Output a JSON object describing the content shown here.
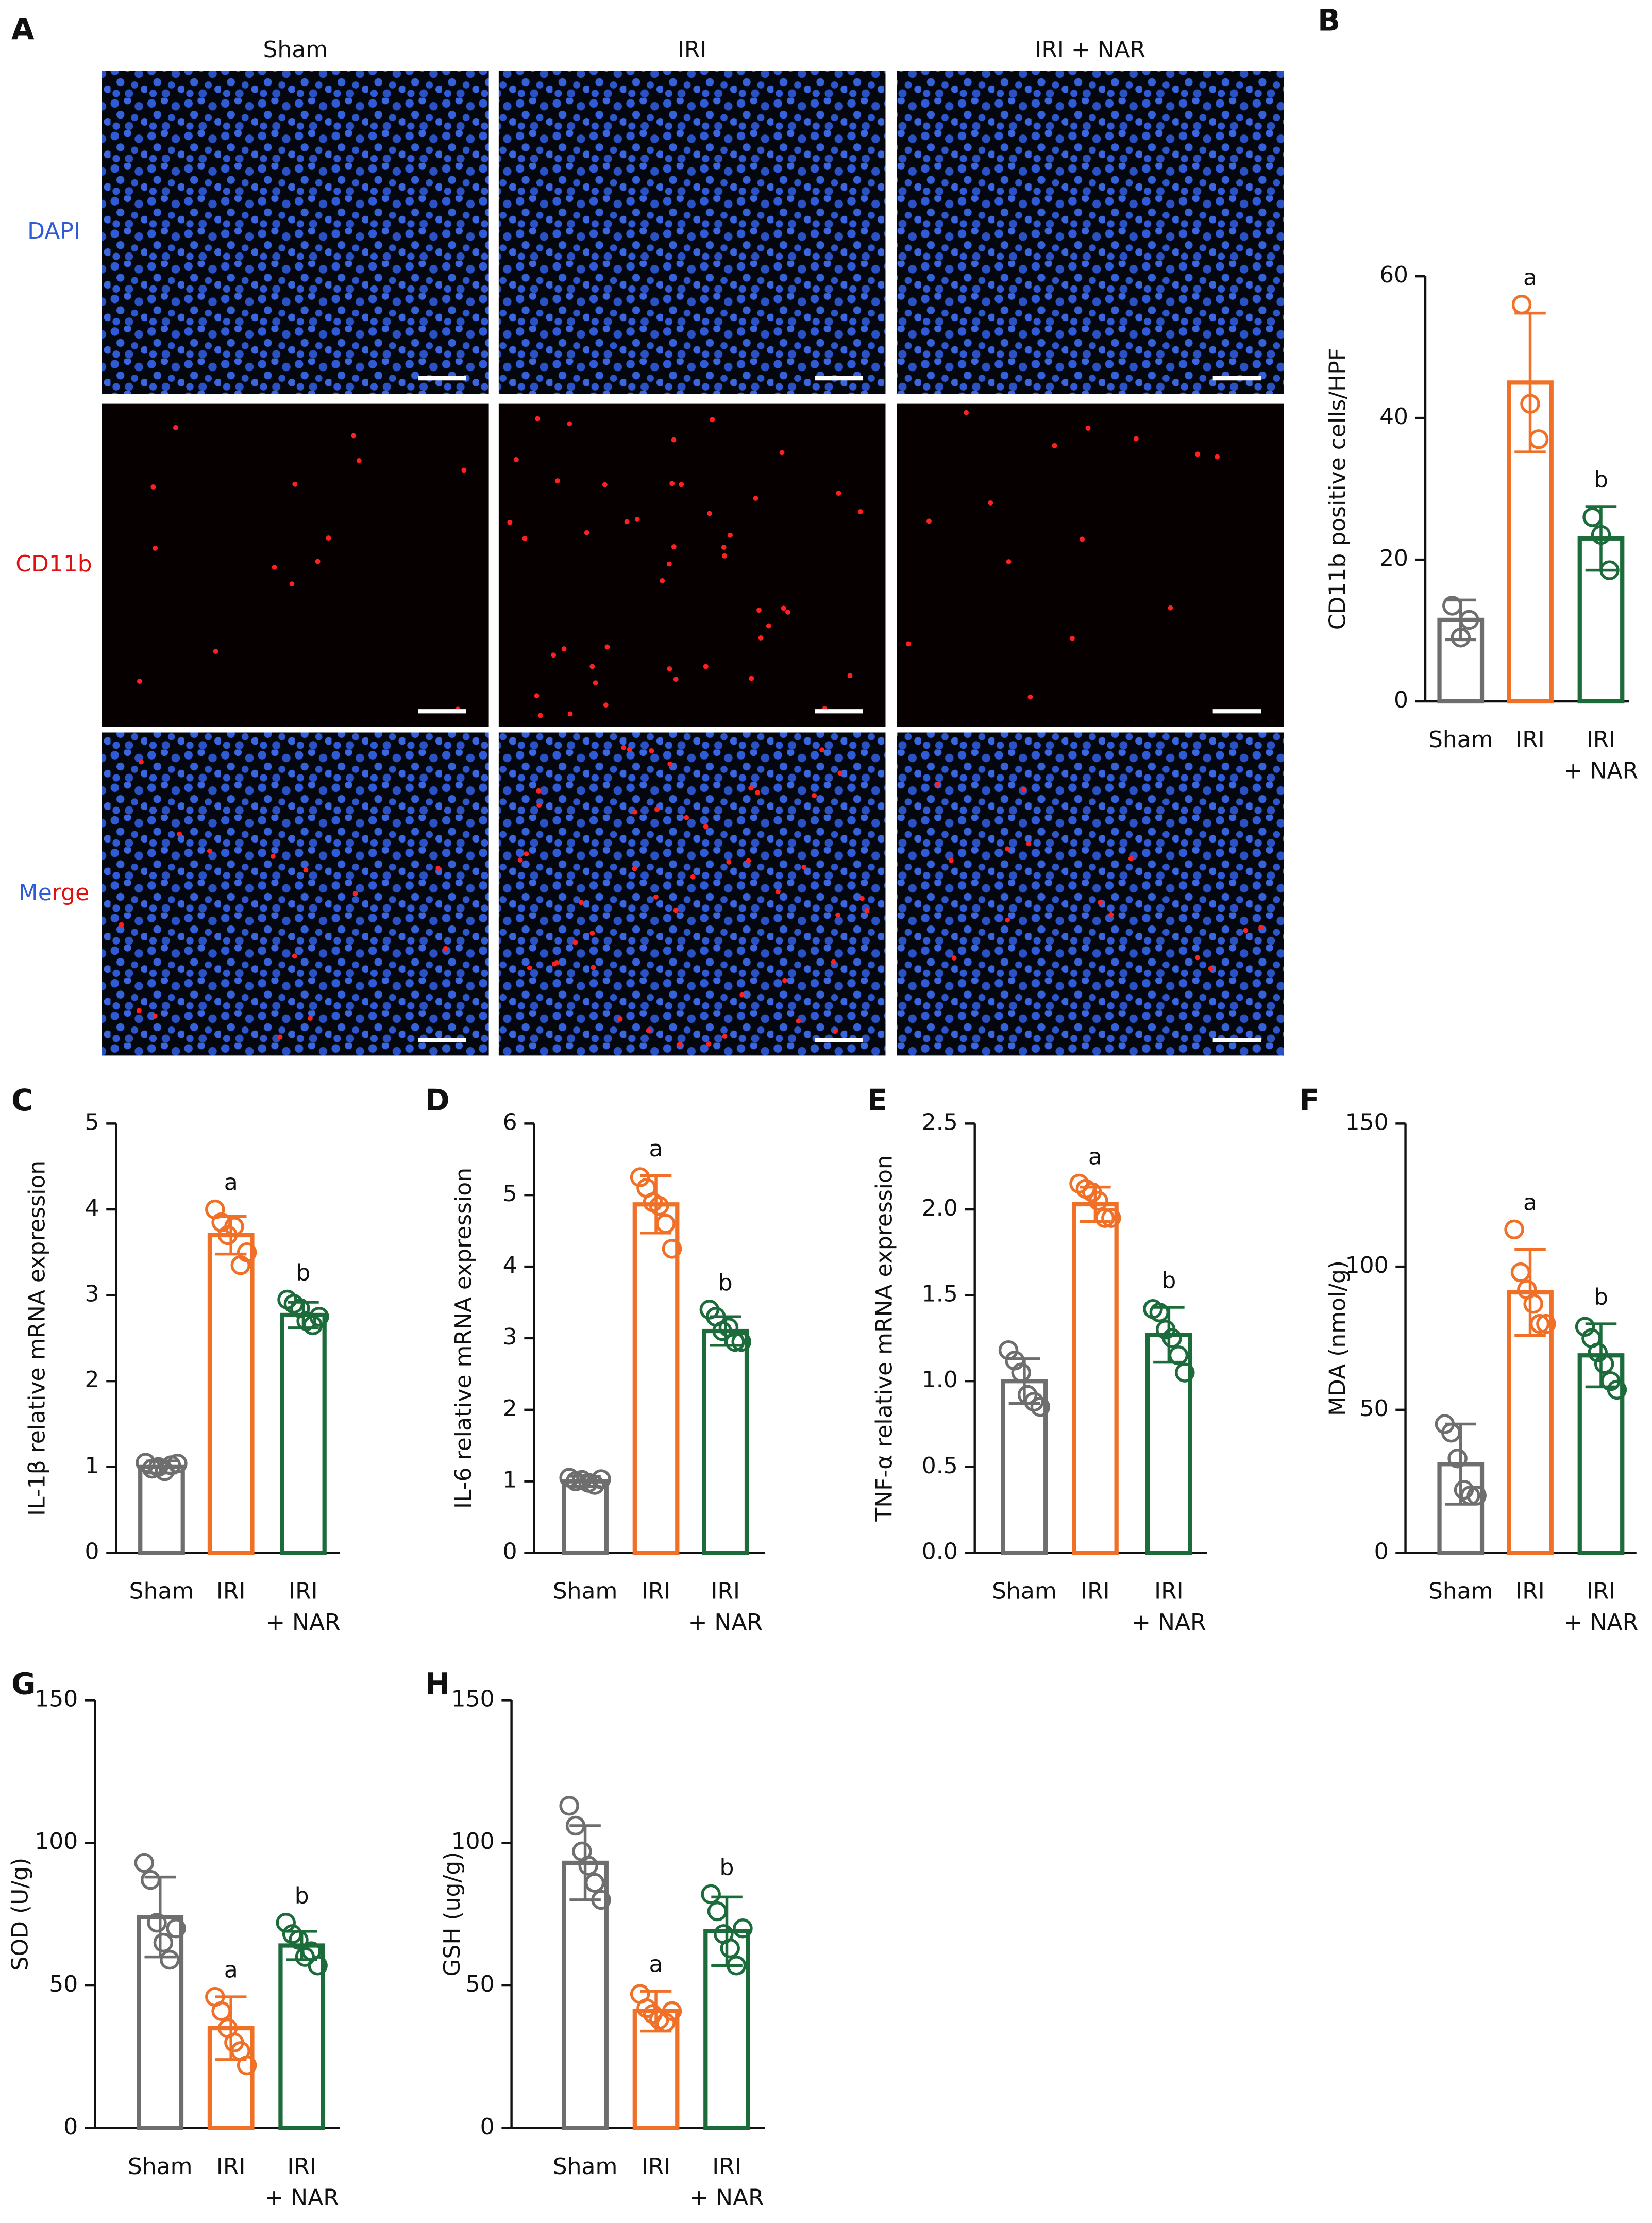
{
  "panel_a": {
    "label": "A",
    "columns": [
      "Sham",
      "IRI",
      "IRI + NAR"
    ],
    "rows": [
      "DAPI",
      "CD11b",
      "Merge"
    ]
  },
  "chart_data": [
    {
      "type": "bar",
      "label": "B",
      "ylabel": "CD11b positive cells/HPF",
      "categories": [
        "Sham",
        "IRI",
        "IRI + NAR"
      ],
      "colors": [
        "#6e6e6e",
        "#f07027",
        "#1c6b3a"
      ],
      "values": [
        11.5,
        45,
        23
      ],
      "errors": [
        2.8,
        9.8,
        4.5
      ],
      "points": [
        [
          13.5,
          9,
          11.5
        ],
        [
          56,
          42,
          37
        ],
        [
          26,
          23.5,
          18.5
        ]
      ],
      "annotations": [
        null,
        "a",
        "b"
      ],
      "ylim": [
        0,
        60
      ],
      "yticks": [
        0,
        20,
        40,
        60
      ]
    },
    {
      "type": "bar",
      "label": "C",
      "ylabel": "IL-1β relative mRNA expression",
      "categories": [
        "Sham",
        "IRI",
        "IRI + NAR"
      ],
      "colors": [
        "#6e6e6e",
        "#f07027",
        "#1c6b3a"
      ],
      "values": [
        1.0,
        3.7,
        2.77
      ],
      "errors": [
        0.07,
        0.22,
        0.15
      ],
      "points": [
        [
          1.05,
          0.98,
          1.0,
          0.95,
          1.02,
          1.04
        ],
        [
          4.0,
          3.85,
          3.7,
          3.8,
          3.35,
          3.5
        ],
        [
          2.95,
          2.9,
          2.85,
          2.7,
          2.65,
          2.75
        ]
      ],
      "annotations": [
        null,
        "a",
        "b"
      ],
      "ylim": [
        0,
        5
      ],
      "yticks": [
        0,
        1,
        2,
        3,
        4,
        5
      ]
    },
    {
      "type": "bar",
      "label": "D",
      "ylabel": "IL-6 relative mRNA expression",
      "categories": [
        "Sham",
        "IRI",
        "IRI + NAR"
      ],
      "colors": [
        "#6e6e6e",
        "#f07027",
        "#1c6b3a"
      ],
      "values": [
        1.0,
        4.87,
        3.1
      ],
      "errors": [
        0.07,
        0.4,
        0.2
      ],
      "points": [
        [
          1.05,
          1.0,
          1.02,
          0.98,
          0.95,
          1.03
        ],
        [
          5.25,
          5.1,
          4.9,
          4.85,
          4.6,
          4.25
        ],
        [
          3.4,
          3.3,
          3.1,
          3.15,
          2.95,
          2.95
        ]
      ],
      "annotations": [
        null,
        "a",
        "b"
      ],
      "ylim": [
        0,
        6
      ],
      "yticks": [
        0,
        1,
        2,
        3,
        4,
        5,
        6
      ]
    },
    {
      "type": "bar",
      "label": "E",
      "ylabel": "TNF-α relative mRNA expression",
      "categories": [
        "Sham",
        "IRI",
        "IRI + NAR"
      ],
      "colors": [
        "#6e6e6e",
        "#f07027",
        "#1c6b3a"
      ],
      "values": [
        1.0,
        2.03,
        1.27
      ],
      "errors": [
        0.13,
        0.1,
        0.16
      ],
      "points": [
        [
          1.18,
          1.12,
          1.05,
          0.92,
          0.88,
          0.85
        ],
        [
          2.15,
          2.12,
          2.1,
          2.05,
          1.95,
          1.95
        ],
        [
          1.42,
          1.4,
          1.3,
          1.25,
          1.15,
          1.05
        ]
      ],
      "annotations": [
        null,
        "a",
        "b"
      ],
      "ylim": [
        0,
        2.5
      ],
      "yticks": [
        {
          "value": 0,
          "label": "0.0"
        },
        {
          "value": 0.5,
          "label": "0.5"
        },
        {
          "value": 1,
          "label": "1.0"
        },
        {
          "value": 1.5,
          "label": "1.5"
        },
        {
          "value": 2,
          "label": "2.0"
        },
        {
          "value": 2.5,
          "label": "2.5"
        }
      ]
    },
    {
      "type": "bar",
      "label": "F",
      "ylabel": "MDA (nmol/g)",
      "categories": [
        "Sham",
        "IRI",
        "IRI + NAR"
      ],
      "colors": [
        "#6e6e6e",
        "#f07027",
        "#1c6b3a"
      ],
      "values": [
        31,
        91,
        69
      ],
      "errors": [
        14,
        15,
        11
      ],
      "points": [
        [
          45,
          42,
          33,
          22,
          20,
          20
        ],
        [
          113,
          98,
          92,
          87,
          80,
          80
        ],
        [
          79,
          75,
          70,
          66,
          60,
          57
        ]
      ],
      "annotations": [
        null,
        "a",
        "b"
      ],
      "ylim": [
        0,
        150
      ],
      "yticks": [
        0,
        50,
        100,
        150
      ]
    },
    {
      "type": "bar",
      "label": "G",
      "ylabel": "SOD (U/g)",
      "categories": [
        "Sham",
        "IRI",
        "IRI + NAR"
      ],
      "colors": [
        "#6e6e6e",
        "#f07027",
        "#1c6b3a"
      ],
      "values": [
        74,
        35,
        64
      ],
      "errors": [
        14,
        11,
        5
      ],
      "points": [
        [
          93,
          87,
          72,
          65,
          59,
          70
        ],
        [
          46,
          41,
          35,
          30,
          27,
          22
        ],
        [
          72,
          68,
          66,
          60,
          62,
          57
        ]
      ],
      "annotations": [
        null,
        "a",
        "b"
      ],
      "ylim": [
        0,
        150
      ],
      "yticks": [
        0,
        50,
        100,
        150
      ]
    },
    {
      "type": "bar",
      "label": "H",
      "ylabel": "GSH (ug/g)",
      "categories": [
        "Sham",
        "IRI",
        "IRI + NAR"
      ],
      "colors": [
        "#6e6e6e",
        "#f07027",
        "#1c6b3a"
      ],
      "values": [
        93,
        41,
        69
      ],
      "errors": [
        13,
        7,
        12
      ],
      "points": [
        [
          113,
          106,
          97,
          92,
          86,
          80
        ],
        [
          47,
          42,
          40,
          38,
          37,
          41
        ],
        [
          82,
          76,
          68,
          63,
          57,
          70
        ]
      ],
      "annotations": [
        null,
        "a",
        "b"
      ],
      "ylim": [
        0,
        150
      ],
      "yticks": [
        0,
        50,
        100,
        150
      ]
    }
  ]
}
